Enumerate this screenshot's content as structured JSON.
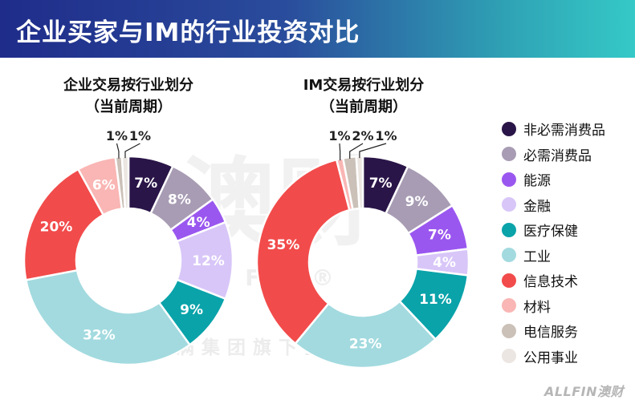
{
  "header": {
    "title": "企业买家与IM的行业投资对比"
  },
  "watermark": {
    "big": "澳财",
    "brand": "ALL FIN ®",
    "tagline": "博满集团旗下企业"
  },
  "footer": {
    "logo": "ALLFIN澳财"
  },
  "colors": {
    "非必需消费品": "#2a1548",
    "必需消费品": "#a89cb4",
    "能源": "#9a57ef",
    "金融": "#d8c6f8",
    "医疗保健": "#0aa3aa",
    "工业": "#a2dadf",
    "信息技术": "#f24b4b",
    "材料": "#f9b6b4",
    "电信服务": "#cbc1b8",
    "公用事业": "#ebe6e1"
  },
  "chart_data": [
    {
      "type": "pie",
      "title": "企业交易按行业划分",
      "subtitle": "（当前周期）",
      "categories": [
        "非必需消费品",
        "必需消费品",
        "能源",
        "金融",
        "医疗保健",
        "工业",
        "信息技术",
        "材料",
        "电信服务",
        "公用事业"
      ],
      "values": [
        7,
        8,
        4,
        12,
        9,
        32,
        20,
        6,
        1,
        1
      ],
      "labels": [
        "7%",
        "8%",
        "4%",
        "12%",
        "9%",
        "32%",
        "20%",
        "6%",
        "1%",
        "1%"
      ]
    },
    {
      "type": "pie",
      "title": "IM交易按行业划分",
      "subtitle": "（当前周期）",
      "categories": [
        "非必需消费品",
        "必需消费品",
        "能源",
        "金融",
        "医疗保健",
        "工业",
        "信息技术",
        "材料",
        "电信服务",
        "公用事业"
      ],
      "values": [
        7,
        9,
        7,
        4,
        11,
        23,
        35,
        1,
        2,
        1
      ],
      "labels": [
        "7%",
        "9%",
        "7%",
        "4%",
        "11%",
        "23%",
        "35%",
        "1%",
        "2%",
        "1%"
      ]
    }
  ],
  "legend": {
    "items": [
      "非必需消费品",
      "必需消费品",
      "能源",
      "金融",
      "医疗保健",
      "工业",
      "信息技术",
      "材料",
      "电信服务",
      "公用事业"
    ]
  }
}
